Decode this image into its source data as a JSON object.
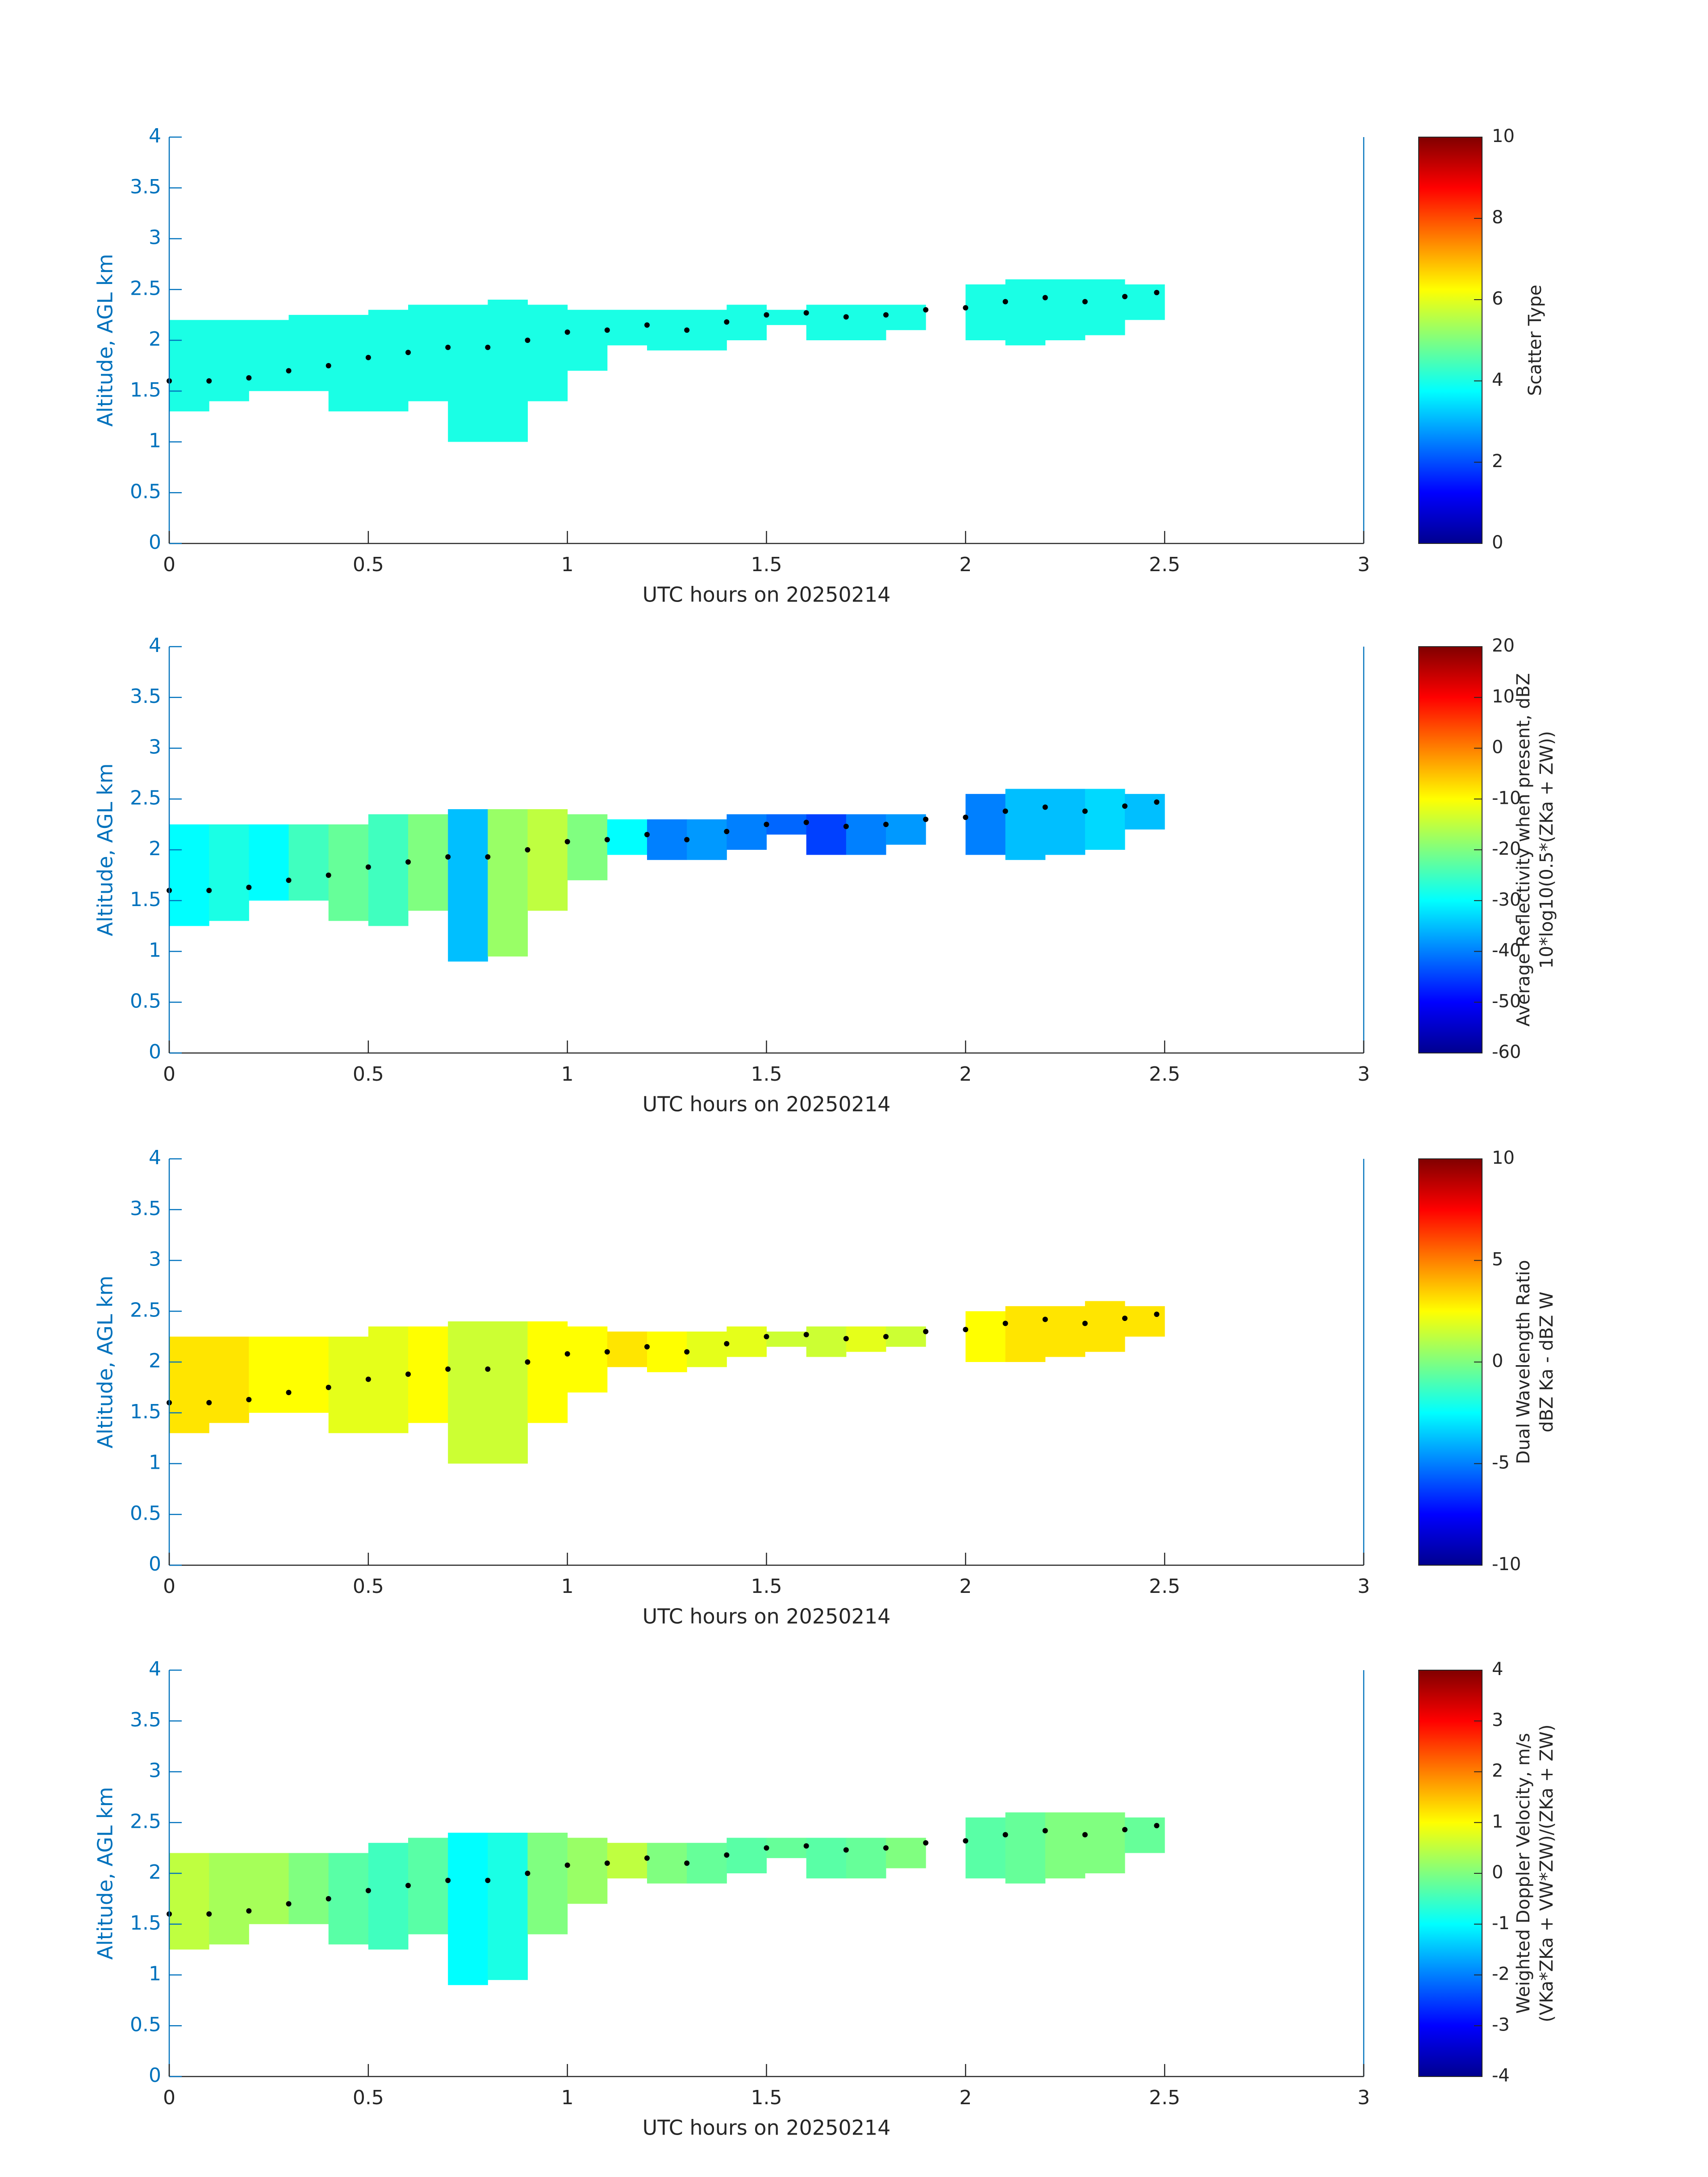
{
  "chart_data": [
    {
      "type": "heatmap",
      "xlabel": "UTC hours on 20250214",
      "ylabel": "Altitude, AGL km",
      "colorbar_label": [
        "Scatter Type"
      ],
      "xlim": [
        0,
        3
      ],
      "ylim": [
        0,
        4
      ],
      "xticks": [
        0,
        0.5,
        1,
        1.5,
        2,
        2.5,
        3
      ],
      "yticks": [
        0,
        0.5,
        1,
        1.5,
        2,
        2.5,
        3,
        3.5,
        4
      ],
      "clim": [
        0,
        10
      ],
      "cticks": [
        0,
        2,
        4,
        6,
        8,
        10
      ],
      "x": [
        0.05,
        0.15,
        0.25,
        0.35,
        0.45,
        0.55,
        0.65,
        0.75,
        0.85,
        0.95,
        1.05,
        1.15,
        1.25,
        1.35,
        1.45,
        1.55,
        1.65,
        1.75,
        1.85,
        1.95,
        2.05,
        2.15,
        2.25,
        2.35,
        2.45
      ],
      "base": [
        1.3,
        1.4,
        1.5,
        1.5,
        1.3,
        1.3,
        1.4,
        1.0,
        1.0,
        1.4,
        1.7,
        1.95,
        1.9,
        1.9,
        2.0,
        2.15,
        2.0,
        2.0,
        2.1,
        null,
        2.0,
        1.95,
        2.0,
        2.05,
        2.2
      ],
      "top": [
        2.2,
        2.2,
        2.2,
        2.25,
        2.25,
        2.3,
        2.35,
        2.35,
        2.4,
        2.35,
        2.3,
        2.3,
        2.3,
        2.3,
        2.35,
        2.3,
        2.35,
        2.35,
        2.35,
        null,
        2.55,
        2.6,
        2.6,
        2.6,
        2.55
      ],
      "values": [
        4,
        4,
        4,
        4,
        4,
        4,
        4,
        4,
        4,
        4,
        4,
        4,
        4,
        4,
        4,
        4,
        4,
        4,
        4,
        null,
        4,
        4,
        4,
        4,
        4
      ],
      "dots": {
        "x": [
          0,
          0.1,
          0.2,
          0.3,
          0.4,
          0.5,
          0.6,
          0.7,
          0.8,
          0.9,
          1.0,
          1.1,
          1.2,
          1.3,
          1.4,
          1.5,
          1.6,
          1.7,
          1.8,
          1.9,
          2.0,
          2.1,
          2.2,
          2.3,
          2.4,
          2.48
        ],
        "y": [
          1.6,
          1.6,
          1.63,
          1.7,
          1.75,
          1.83,
          1.88,
          1.93,
          1.93,
          2.0,
          2.08,
          2.1,
          2.15,
          2.1,
          2.18,
          2.25,
          2.27,
          2.23,
          2.25,
          2.3,
          2.32,
          2.38,
          2.42,
          2.38,
          2.43,
          2.47
        ]
      }
    },
    {
      "type": "heatmap",
      "xlabel": "UTC hours on 20250214",
      "ylabel": "Altitude, AGL km",
      "colorbar_label": [
        "Average Reflectivity when present, dBZ",
        "10*log10(0.5*(ZKa + ZW))"
      ],
      "xlim": [
        0,
        3
      ],
      "ylim": [
        0,
        4
      ],
      "xticks": [
        0,
        0.5,
        1,
        1.5,
        2,
        2.5,
        3
      ],
      "yticks": [
        0,
        0.5,
        1,
        1.5,
        2,
        2.5,
        3,
        3.5,
        4
      ],
      "clim": [
        -60,
        20
      ],
      "cticks": [
        -60,
        -50,
        -40,
        -30,
        -20,
        -10,
        0,
        10,
        20
      ],
      "x": [
        0.05,
        0.15,
        0.25,
        0.35,
        0.45,
        0.55,
        0.65,
        0.75,
        0.85,
        0.95,
        1.05,
        1.15,
        1.25,
        1.35,
        1.45,
        1.55,
        1.65,
        1.75,
        1.85,
        1.95,
        2.05,
        2.15,
        2.25,
        2.35,
        2.45
      ],
      "base": [
        1.25,
        1.3,
        1.5,
        1.5,
        1.3,
        1.25,
        1.4,
        0.9,
        0.95,
        1.4,
        1.7,
        1.95,
        1.9,
        1.9,
        2.0,
        2.15,
        1.95,
        1.95,
        2.05,
        null,
        1.95,
        1.9,
        1.95,
        2.0,
        2.2
      ],
      "top": [
        2.25,
        2.25,
        2.25,
        2.25,
        2.25,
        2.35,
        2.35,
        2.4,
        2.4,
        2.4,
        2.35,
        2.3,
        2.3,
        2.3,
        2.35,
        2.35,
        2.35,
        2.35,
        2.35,
        null,
        2.55,
        2.6,
        2.6,
        2.6,
        2.55
      ],
      "values": [
        -30,
        -28,
        -30,
        -25,
        -22,
        -25,
        -20,
        -35,
        -18,
        -15,
        -20,
        -30,
        -40,
        -38,
        -40,
        -42,
        -45,
        -40,
        -38,
        null,
        -40,
        -35,
        -35,
        -33,
        -35
      ],
      "dots": {
        "x": [
          0,
          0.1,
          0.2,
          0.3,
          0.4,
          0.5,
          0.6,
          0.7,
          0.8,
          0.9,
          1.0,
          1.1,
          1.2,
          1.3,
          1.4,
          1.5,
          1.6,
          1.7,
          1.8,
          1.9,
          2.0,
          2.1,
          2.2,
          2.3,
          2.4,
          2.48
        ],
        "y": [
          1.6,
          1.6,
          1.63,
          1.7,
          1.75,
          1.83,
          1.88,
          1.93,
          1.93,
          2.0,
          2.08,
          2.1,
          2.15,
          2.1,
          2.18,
          2.25,
          2.27,
          2.23,
          2.25,
          2.3,
          2.32,
          2.38,
          2.42,
          2.38,
          2.43,
          2.47
        ]
      }
    },
    {
      "type": "heatmap",
      "xlabel": "UTC hours on 20250214",
      "ylabel": "Altitude, AGL km",
      "colorbar_label": [
        "Dual Wavelength Ratio",
        "dBZ Ka - dBZ W"
      ],
      "xlim": [
        0,
        3
      ],
      "ylim": [
        0,
        4
      ],
      "xticks": [
        0,
        0.5,
        1,
        1.5,
        2,
        2.5,
        3
      ],
      "yticks": [
        0,
        0.5,
        1,
        1.5,
        2,
        2.5,
        3,
        3.5,
        4
      ],
      "clim": [
        -10,
        10
      ],
      "cticks": [
        -10,
        -5,
        0,
        5,
        10
      ],
      "x": [
        0.05,
        0.15,
        0.25,
        0.35,
        0.45,
        0.55,
        0.65,
        0.75,
        0.85,
        0.95,
        1.05,
        1.15,
        1.25,
        1.35,
        1.45,
        1.55,
        1.65,
        1.75,
        1.85,
        1.95,
        2.05,
        2.15,
        2.25,
        2.35,
        2.45
      ],
      "base": [
        1.3,
        1.4,
        1.5,
        1.5,
        1.3,
        1.3,
        1.4,
        1.0,
        1.0,
        1.4,
        1.7,
        1.95,
        1.9,
        1.95,
        2.05,
        2.15,
        2.05,
        2.1,
        2.15,
        null,
        2.0,
        2.0,
        2.05,
        2.1,
        2.25
      ],
      "top": [
        2.25,
        2.25,
        2.25,
        2.25,
        2.25,
        2.35,
        2.35,
        2.4,
        2.4,
        2.4,
        2.35,
        2.3,
        2.3,
        2.3,
        2.35,
        2.3,
        2.35,
        2.35,
        2.35,
        null,
        2.5,
        2.55,
        2.55,
        2.6,
        2.55
      ],
      "values": [
        3,
        3,
        2.5,
        2.5,
        2,
        2,
        2.5,
        1.5,
        1.5,
        2.5,
        2.5,
        3,
        2.5,
        2,
        2,
        1.5,
        1.5,
        2,
        1.5,
        null,
        2.5,
        3,
        3,
        3,
        3
      ],
      "dots": {
        "x": [
          0,
          0.1,
          0.2,
          0.3,
          0.4,
          0.5,
          0.6,
          0.7,
          0.8,
          0.9,
          1.0,
          1.1,
          1.2,
          1.3,
          1.4,
          1.5,
          1.6,
          1.7,
          1.8,
          1.9,
          2.0,
          2.1,
          2.2,
          2.3,
          2.4,
          2.48
        ],
        "y": [
          1.6,
          1.6,
          1.63,
          1.7,
          1.75,
          1.83,
          1.88,
          1.93,
          1.93,
          2.0,
          2.08,
          2.1,
          2.15,
          2.1,
          2.18,
          2.25,
          2.27,
          2.23,
          2.25,
          2.3,
          2.32,
          2.38,
          2.42,
          2.38,
          2.43,
          2.47
        ]
      }
    },
    {
      "type": "heatmap",
      "xlabel": "UTC hours on 20250214",
      "ylabel": "Altitude, AGL km",
      "colorbar_label": [
        "Weighted Doppler Velocity, m/s",
        "(VKa*ZKa + VW*ZW)/(ZKa + ZW)"
      ],
      "xlim": [
        0,
        3
      ],
      "ylim": [
        0,
        4
      ],
      "xticks": [
        0,
        0.5,
        1,
        1.5,
        2,
        2.5,
        3
      ],
      "yticks": [
        0,
        0.5,
        1,
        1.5,
        2,
        2.5,
        3,
        3.5,
        4
      ],
      "clim": [
        -4,
        4
      ],
      "cticks": [
        -4,
        -3,
        -2,
        -1,
        0,
        1,
        2,
        3,
        4
      ],
      "x": [
        0.05,
        0.15,
        0.25,
        0.35,
        0.45,
        0.55,
        0.65,
        0.75,
        0.85,
        0.95,
        1.05,
        1.15,
        1.25,
        1.35,
        1.45,
        1.55,
        1.65,
        1.75,
        1.85,
        1.95,
        2.05,
        2.15,
        2.25,
        2.35,
        2.45
      ],
      "base": [
        1.25,
        1.3,
        1.5,
        1.5,
        1.3,
        1.25,
        1.4,
        0.9,
        0.95,
        1.4,
        1.7,
        1.95,
        1.9,
        1.9,
        2.0,
        2.15,
        1.95,
        1.95,
        2.05,
        null,
        1.95,
        1.9,
        1.95,
        2.0,
        2.2
      ],
      "top": [
        2.2,
        2.2,
        2.2,
        2.2,
        2.2,
        2.3,
        2.35,
        2.4,
        2.4,
        2.4,
        2.35,
        2.3,
        2.3,
        2.3,
        2.35,
        2.35,
        2.35,
        2.35,
        2.35,
        null,
        2.55,
        2.6,
        2.6,
        2.6,
        2.55
      ],
      "values": [
        0.5,
        0.3,
        0.3,
        0,
        -0.3,
        -0.5,
        -0.3,
        -1,
        -0.8,
        0,
        0.2,
        0.5,
        0,
        -0.2,
        -0.3,
        -0.2,
        -0.3,
        -0.2,
        0,
        null,
        -0.3,
        -0.2,
        0,
        0,
        -0.2
      ],
      "dots": {
        "x": [
          0,
          0.1,
          0.2,
          0.3,
          0.4,
          0.5,
          0.6,
          0.7,
          0.8,
          0.9,
          1.0,
          1.1,
          1.2,
          1.3,
          1.4,
          1.5,
          1.6,
          1.7,
          1.8,
          1.9,
          2.0,
          2.1,
          2.2,
          2.3,
          2.4,
          2.48
        ],
        "y": [
          1.6,
          1.6,
          1.63,
          1.7,
          1.75,
          1.83,
          1.88,
          1.93,
          1.93,
          2.0,
          2.08,
          2.1,
          2.15,
          2.1,
          2.18,
          2.25,
          2.27,
          2.23,
          2.25,
          2.3,
          2.32,
          2.38,
          2.42,
          2.38,
          2.43,
          2.47
        ]
      }
    }
  ]
}
